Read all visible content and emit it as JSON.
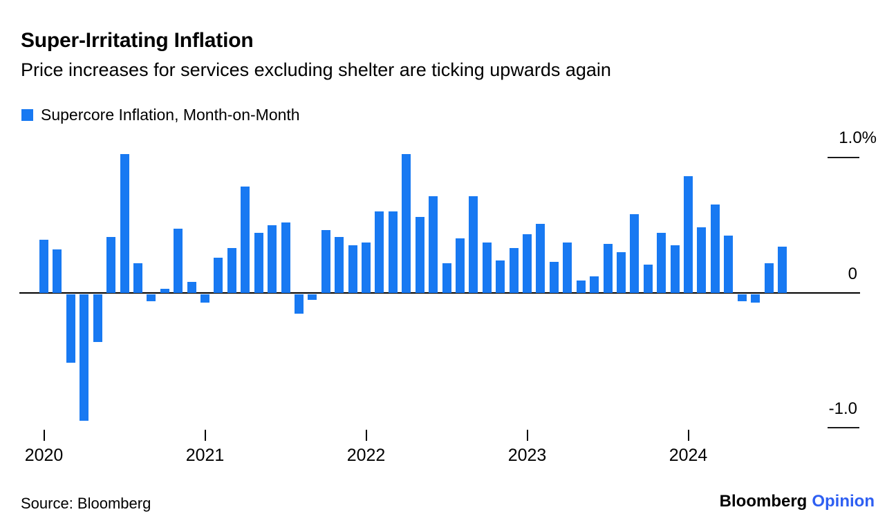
{
  "header": {
    "title": "Super-Irritating Inflation",
    "subtitle": "Price increases for services excluding shelter are ticking upwards again"
  },
  "legend": {
    "label": "Supercore Inflation, Month-on-Month"
  },
  "footer": {
    "source": "Source: Bloomberg",
    "brand_black": "Bloomberg",
    "brand_blue": "Opinion"
  },
  "colors": {
    "bar_blue": "#1879f2",
    "opinion_blue": "#2e5ff2",
    "axis_black": "#000000"
  },
  "chart_data": {
    "type": "bar",
    "title": "Super-Irritating Inflation",
    "subtitle": "Price increases for services excluding shelter are ticking upwards again",
    "series_name": "Supercore Inflation, Month-on-Month",
    "unit": "% month-on-month",
    "x": [
      "2020-01",
      "2020-02",
      "2020-03",
      "2020-04",
      "2020-05",
      "2020-06",
      "2020-07",
      "2020-08",
      "2020-09",
      "2020-10",
      "2020-11",
      "2020-12",
      "2021-01",
      "2021-02",
      "2021-03",
      "2021-04",
      "2021-05",
      "2021-06",
      "2021-07",
      "2021-08",
      "2021-09",
      "2021-10",
      "2021-11",
      "2021-12",
      "2022-01",
      "2022-02",
      "2022-03",
      "2022-04",
      "2022-05",
      "2022-06",
      "2022-07",
      "2022-08",
      "2022-09",
      "2022-10",
      "2022-11",
      "2022-12",
      "2023-01",
      "2023-02",
      "2023-03",
      "2023-04",
      "2023-05",
      "2023-06",
      "2023-07",
      "2023-08",
      "2023-09",
      "2023-10",
      "2023-11",
      "2023-12",
      "2024-01",
      "2024-02",
      "2024-03",
      "2024-04",
      "2024-05",
      "2024-06",
      "2024-07",
      "2024-08"
    ],
    "values": [
      0.39,
      0.32,
      -0.5,
      -0.93,
      -0.35,
      0.41,
      1.02,
      0.22,
      -0.05,
      0.03,
      0.47,
      0.08,
      -0.06,
      0.26,
      0.33,
      0.78,
      0.44,
      0.5,
      0.52,
      -0.14,
      -0.04,
      0.46,
      0.41,
      0.35,
      0.37,
      0.6,
      0.6,
      1.02,
      0.56,
      0.71,
      0.22,
      0.4,
      0.71,
      0.37,
      0.24,
      0.33,
      0.43,
      0.51,
      0.23,
      0.37,
      0.09,
      0.12,
      0.36,
      0.3,
      0.58,
      0.21,
      0.44,
      0.35,
      0.86,
      0.48,
      0.65,
      0.42,
      -0.05,
      -0.06,
      0.22,
      0.34
    ],
    "x_tick_labels": [
      "2020",
      "2021",
      "2022",
      "2023",
      "2024"
    ],
    "y_ticks": [
      {
        "label": "1.0%",
        "value": 1.0
      },
      {
        "label": "0",
        "value": 0
      },
      {
        "label": "-1.0",
        "value": -1.0
      }
    ],
    "ylim": [
      -1.1,
      1.1
    ],
    "grid": "off",
    "legend_position": "top-left",
    "bar_color": "#1879f2"
  }
}
